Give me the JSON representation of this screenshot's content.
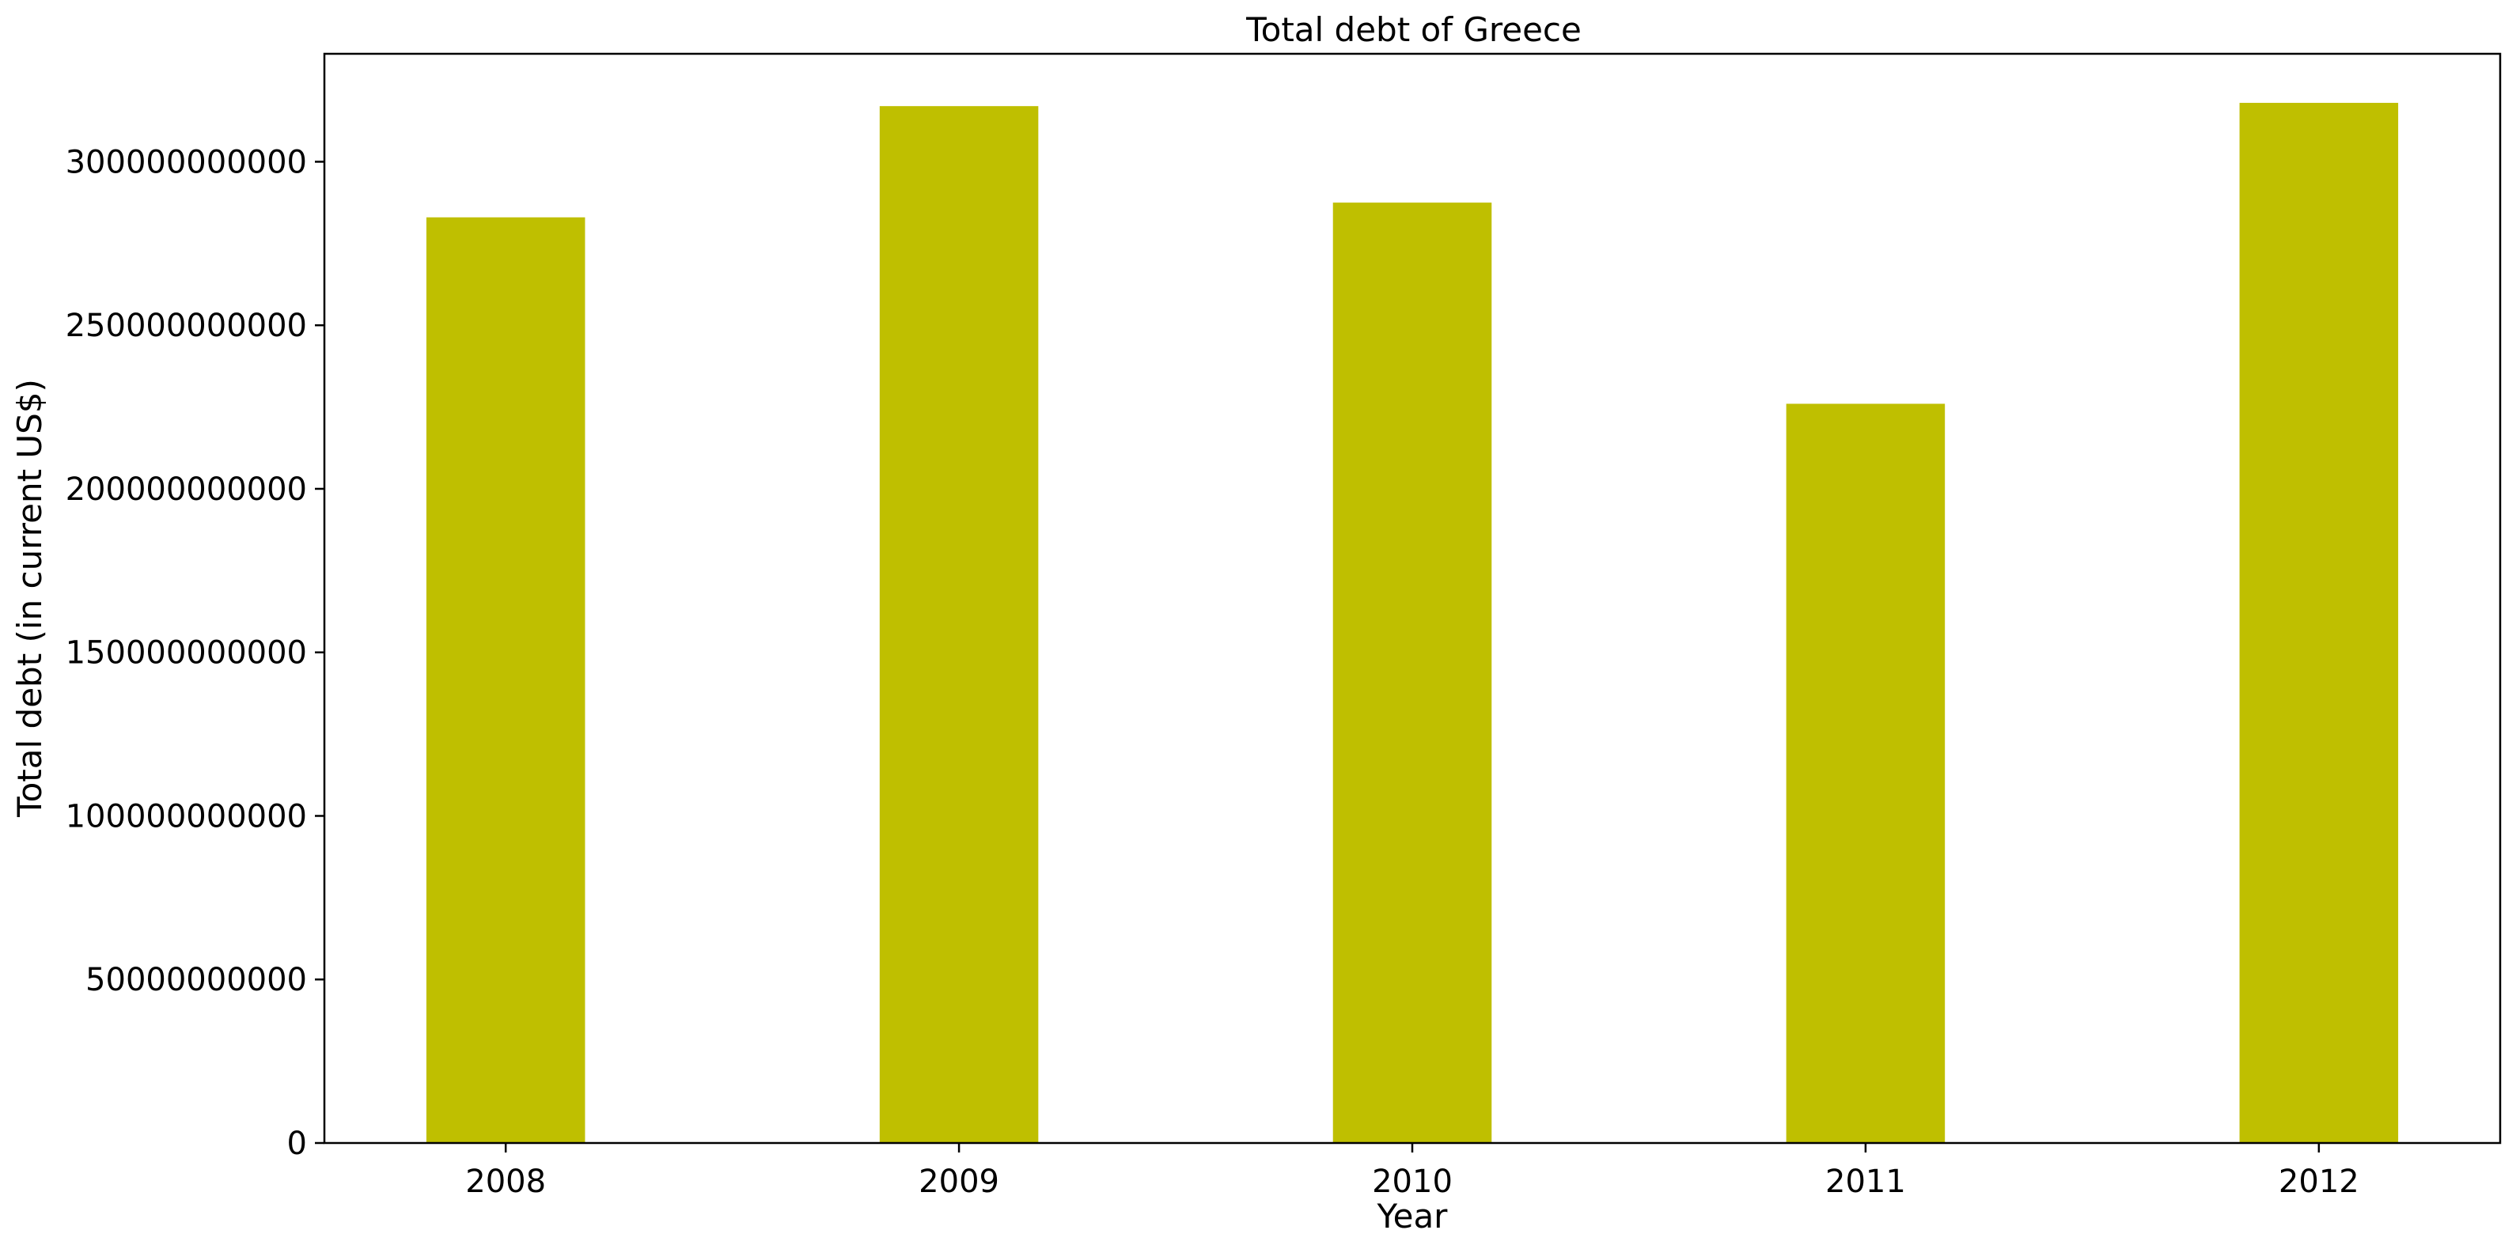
{
  "chart_data": {
    "type": "bar",
    "title": "Total debt of Greece",
    "xlabel": "Year",
    "ylabel": "Total debt (in current US$)",
    "categories": [
      "2008",
      "2009",
      "2010",
      "2011",
      "2012"
    ],
    "values": [
      283000000000,
      317000000000,
      287500000000,
      226000000000,
      318000000000
    ],
    "ylim": [
      0,
      333000000000
    ],
    "yticks": [
      0,
      50000000000,
      100000000000,
      150000000000,
      200000000000,
      250000000000,
      300000000000
    ],
    "ytick_labels": [
      "0",
      "50000000000",
      "100000000000",
      "150000000000",
      "200000000000",
      "250000000000",
      "300000000000"
    ],
    "grid": false,
    "legend": "none",
    "bar_color": "#bfbf00"
  }
}
